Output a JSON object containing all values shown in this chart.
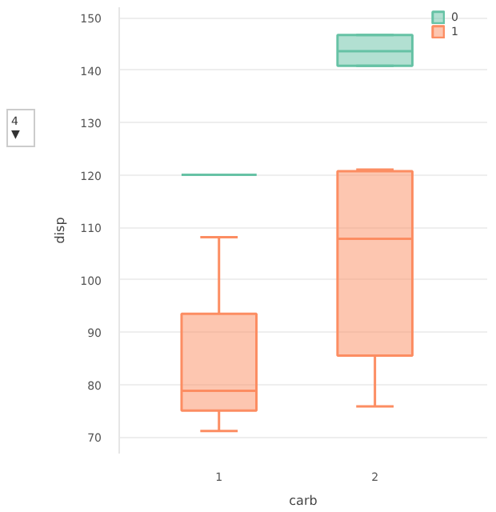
{
  "chart_data": {
    "type": "box",
    "xlabel": "carb",
    "ylabel": "disp",
    "categories": [
      "1",
      "2"
    ],
    "ylim": [
      66.8,
      152
    ],
    "yticks": [
      70,
      80,
      90,
      100,
      110,
      120,
      130,
      140,
      150
    ],
    "grid": "y",
    "legend": "top right",
    "annotations": [
      "4  ▼"
    ],
    "series": [
      {
        "name": "0",
        "color": "#66c2a5",
        "boxes": [
          {
            "low": 120,
            "q1": 120,
            "median": 120,
            "q3": 120,
            "high": 120
          },
          {
            "low": 140.8,
            "q1": 140.8,
            "median": 143.6,
            "q3": 146.7,
            "high": 146.7
          }
        ]
      },
      {
        "name": "1",
        "color": "#fc8d62",
        "boxes": [
          {
            "low": 71.1,
            "q1": 75.0,
            "median": 78.8,
            "q3": 93.5,
            "high": 108.1
          },
          {
            "low": 75.8,
            "q1": 85.5,
            "median": 107.8,
            "q3": 120.7,
            "high": 121.0
          }
        ]
      }
    ]
  }
}
